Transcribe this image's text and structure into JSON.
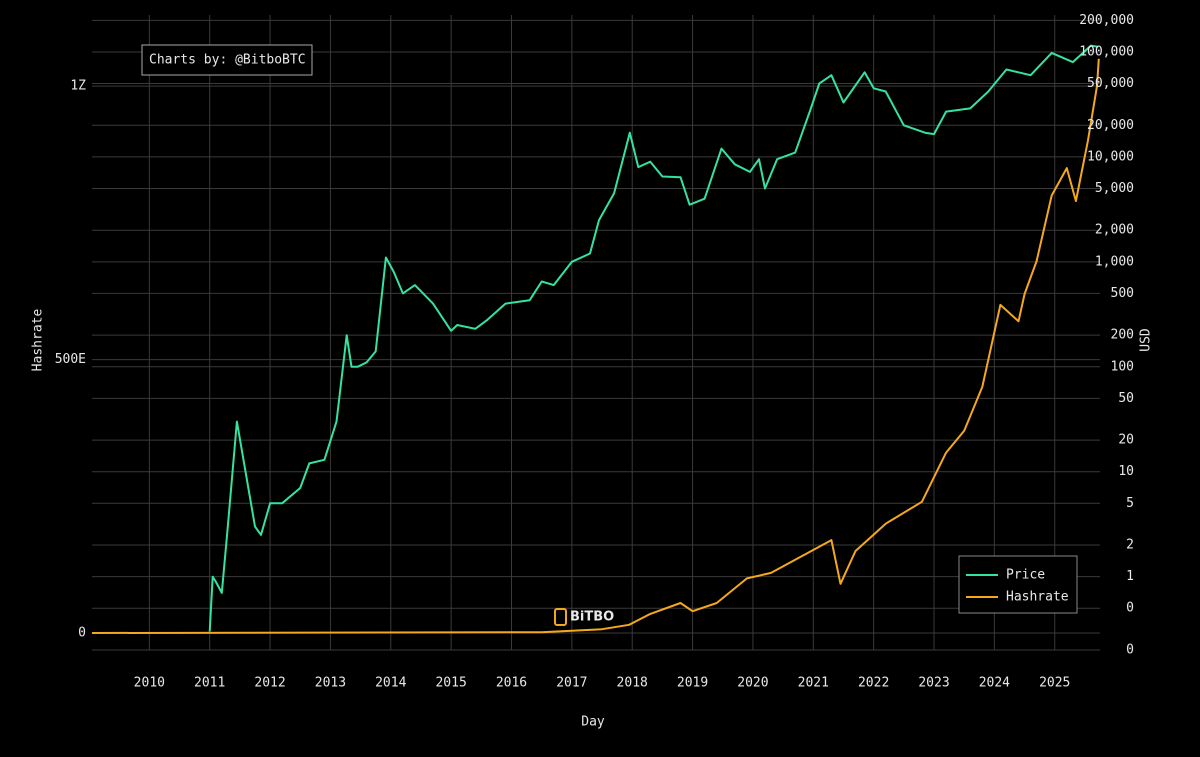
{
  "chart_data": {
    "type": "line",
    "annotation": "Charts by: @BitboBTC",
    "watermark": "BiTBO",
    "x_label": "Day",
    "y_label": "Hashrate",
    "y2_label": "USD",
    "xlim": [
      2009.05,
      2025.75
    ],
    "xticks": [
      2010,
      2011,
      2012,
      2013,
      2014,
      2015,
      2016,
      2017,
      2018,
      2019,
      2020,
      2021,
      2022,
      2023,
      2024,
      2025
    ],
    "ylim": [
      -3.1e+19,
      1.13e+21
    ],
    "yticks": [
      0,
      {
        "value": 5e+20,
        "label": "500E"
      },
      {
        "value": 1e+21,
        "label": "1Z"
      }
    ],
    "y2_log": true,
    "y2lim": [
      0.2,
      225000
    ],
    "y2ticks": [
      {
        "value": 0.2,
        "label": "0"
      },
      {
        "value": 0.5,
        "label": "0"
      },
      1,
      2,
      5,
      10,
      20,
      50,
      100,
      200,
      500,
      {
        "value": 1000,
        "label": "1,000"
      },
      {
        "value": 2000,
        "label": "2,000"
      },
      {
        "value": 5000,
        "label": "5,000"
      },
      {
        "value": 10000,
        "label": "10,000"
      },
      {
        "value": 20000,
        "label": "20,000"
      },
      {
        "value": 50000,
        "label": "50,000"
      },
      {
        "value": 100000,
        "label": "100,000"
      },
      {
        "value": 200000,
        "label": "200,000"
      }
    ],
    "grid": true,
    "legend": "bottom-right",
    "series": [
      {
        "name": "Price",
        "color": "#35e3a0",
        "axis": "y2",
        "x": [
          2011.0,
          2011.05,
          2011.1,
          2011.2,
          2011.3,
          2011.45,
          2011.55,
          2011.75,
          2011.85,
          2012.0,
          2012.2,
          2012.5,
          2012.65,
          2012.9,
          2013.1,
          2013.27,
          2013.35,
          2013.45,
          2013.6,
          2013.75,
          2013.92,
          2014.05,
          2014.2,
          2014.4,
          2014.7,
          2015.0,
          2015.1,
          2015.4,
          2015.6,
          2015.9,
          2016.3,
          2016.5,
          2016.7,
          2017.0,
          2017.3,
          2017.45,
          2017.7,
          2017.96,
          2018.1,
          2018.3,
          2018.5,
          2018.8,
          2018.95,
          2019.2,
          2019.48,
          2019.7,
          2019.95,
          2020.1,
          2020.2,
          2020.4,
          2020.7,
          2020.95,
          2021.1,
          2021.3,
          2021.5,
          2021.85,
          2022.0,
          2022.2,
          2022.5,
          2022.85,
          2023.0,
          2023.2,
          2023.6,
          2023.9,
          2024.2,
          2024.6,
          2024.95,
          2025.3,
          2025.6,
          2025.72
        ],
        "values": [
          0.3,
          1.0,
          0.9,
          0.7,
          3,
          30,
          14,
          3,
          2.5,
          5,
          5,
          7,
          12,
          13,
          30,
          200,
          100,
          100,
          110,
          140,
          1100,
          800,
          500,
          600,
          400,
          220,
          250,
          230,
          280,
          400,
          430,
          650,
          600,
          1000,
          1200,
          2500,
          4500,
          17000,
          8000,
          9000,
          6500,
          6400,
          3500,
          4000,
          12000,
          8500,
          7200,
          9500,
          5000,
          9500,
          11000,
          28000,
          50000,
          60000,
          33000,
          64000,
          45000,
          42000,
          20000,
          17000,
          16500,
          27000,
          29000,
          42000,
          68000,
          60000,
          98000,
          80000,
          115000,
          112000
        ]
      },
      {
        "name": "Hashrate",
        "color": "#f5a81c",
        "x": [
          2009.05,
          2016.5,
          2017.5,
          2017.95,
          2018.3,
          2018.8,
          2019.0,
          2019.4,
          2019.9,
          2020.3,
          2020.8,
          2021.3,
          2021.45,
          2021.7,
          2022.2,
          2022.8,
          2023.2,
          2023.5,
          2023.8,
          2024.1,
          2024.4,
          2024.5,
          2024.7,
          2024.95,
          2025.2,
          2025.35,
          2025.55,
          2025.7,
          2025.73
        ],
        "values": [
          0,
          1.5e+18,
          7e+18,
          1.5e+19,
          3.5e+19,
          5.5e+19,
          4e+19,
          5.5e+19,
          1e+20,
          1.1e+20,
          1.4e+20,
          1.7e+20,
          9e+19,
          1.5e+20,
          2e+20,
          2.4e+20,
          3.3e+20,
          3.7e+20,
          4.5e+20,
          6e+20,
          5.7e+20,
          6.2e+20,
          6.8e+20,
          8e+20,
          8.5e+20,
          7.9e+20,
          9e+20,
          1e+21,
          1.05e+21
        ]
      }
    ]
  }
}
